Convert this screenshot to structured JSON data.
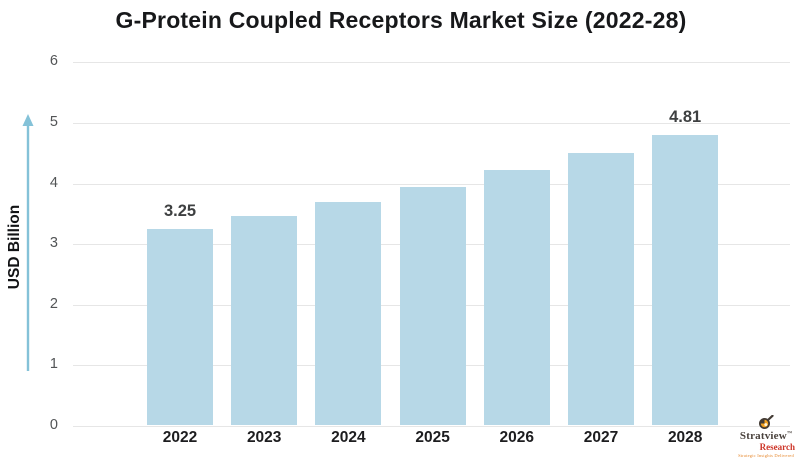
{
  "chart_data": {
    "type": "bar",
    "title": "G-Protein Coupled Receptors Market Size (2022-28)",
    "ylabel": "USD Billion",
    "xlabel": "",
    "categories": [
      "2022",
      "2023",
      "2024",
      "2025",
      "2026",
      "2027",
      "2028"
    ],
    "values": [
      3.25,
      3.47,
      3.7,
      3.95,
      4.22,
      4.5,
      4.81
    ],
    "data_labels": [
      {
        "index": 0,
        "text": "3.25"
      },
      {
        "index": 6,
        "text": "4.81"
      }
    ],
    "yticks": [
      0,
      1,
      2,
      3,
      4,
      5,
      6
    ],
    "ylim": [
      0,
      6
    ],
    "grid": "horizontal",
    "legend": false
  },
  "colors": {
    "bar": "#b7d8e7",
    "arrow": "#84c2d8",
    "grid": "#e6e6e6",
    "title": "#17181a",
    "tick": "#525456",
    "xlabel": "#1d1d1f",
    "value_label": "#3e4041",
    "logo_dark": "#4a423d",
    "logo_red": "#cd3427",
    "logo_orange": "#e6882e"
  },
  "logo": {
    "brand": "Stratview",
    "tm": "™",
    "sub": "Research",
    "tagline": "Strategic Insights Delivered"
  }
}
